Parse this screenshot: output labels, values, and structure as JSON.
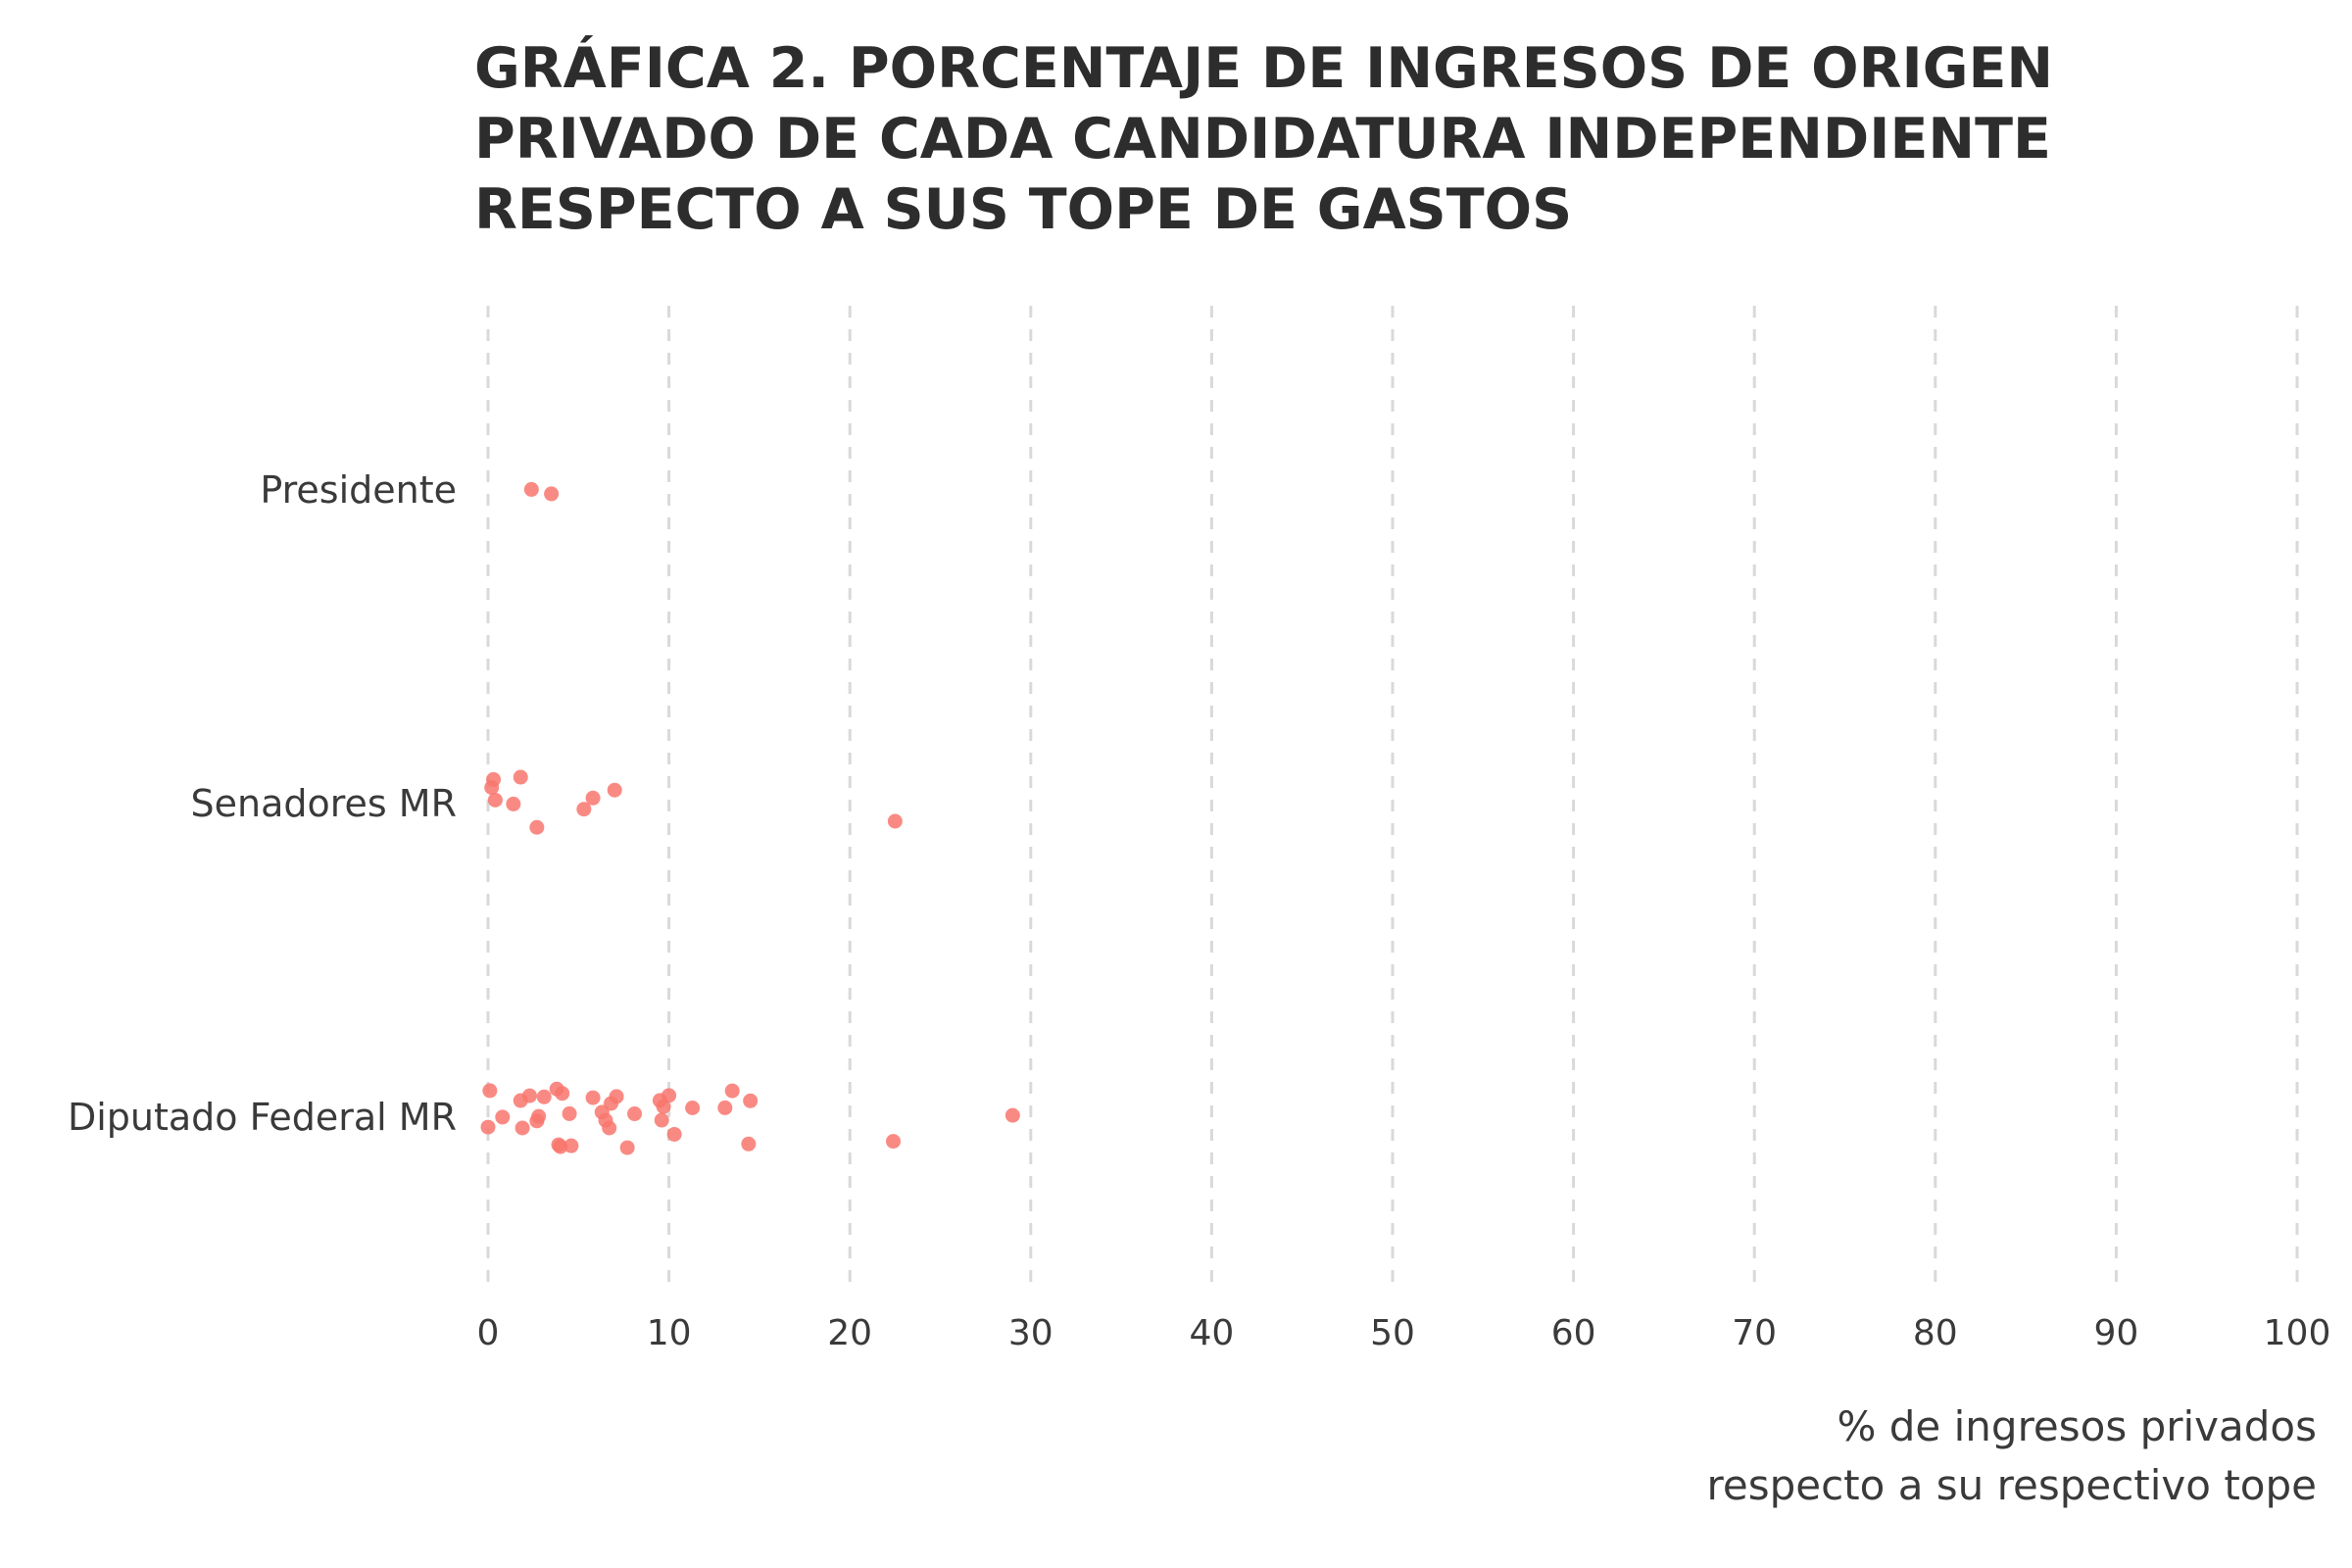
{
  "chart_data": {
    "type": "scatter",
    "title": "GRÁFICA 2. PORCENTAJE DE INGRESOS DE ORIGEN PRIVADO DE CADA CANDIDATURA INDEPENDIENTE RESPECTO A SUS TOPE DE GASTOS",
    "xlabel_lines": [
      "% de ingresos privados",
      "respecto a su respectivo tope"
    ],
    "ylabel": "",
    "xlim": [
      0,
      100
    ],
    "xticks": [
      0,
      10,
      20,
      30,
      40,
      50,
      60,
      70,
      80,
      90,
      100
    ],
    "grid": "vertical-dashed",
    "marker_color": "#f8766d",
    "categories": [
      "Presidente",
      "Senadores MR",
      "Diputado Federal MR"
    ],
    "series": [
      {
        "category": "Presidente",
        "values": [
          2.4,
          3.5
        ]
      },
      {
        "category": "Senadores MR",
        "values": [
          0.3,
          0.2,
          0.4,
          1.4,
          1.8,
          2.7,
          5.3,
          5.8,
          7.0,
          22.5
        ]
      },
      {
        "category": "Diputado Federal MR",
        "values": [
          0.0,
          0.1,
          0.8,
          1.8,
          1.9,
          2.3,
          2.7,
          2.8,
          3.1,
          3.8,
          3.9,
          4.0,
          4.1,
          4.5,
          4.6,
          5.8,
          6.3,
          6.5,
          6.7,
          6.8,
          7.1,
          7.7,
          8.1,
          9.5,
          9.6,
          9.7,
          10.0,
          10.3,
          11.3,
          13.1,
          13.5,
          14.4,
          14.5,
          22.4,
          29.0
        ]
      }
    ]
  }
}
